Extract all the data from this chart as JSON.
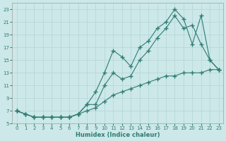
{
  "xlabel": "Humidex (Indice chaleur)",
  "bg_color": "#cce8e8",
  "line_color": "#2e7d72",
  "grid_color": "#b8d8d8",
  "xlim": [
    -0.5,
    23.5
  ],
  "ylim": [
    5,
    24
  ],
  "yticks": [
    5,
    7,
    9,
    11,
    13,
    15,
    17,
    19,
    21,
    23
  ],
  "xticks": [
    0,
    1,
    2,
    3,
    4,
    5,
    6,
    7,
    8,
    9,
    10,
    11,
    12,
    13,
    14,
    15,
    16,
    17,
    18,
    19,
    20,
    21,
    22,
    23
  ],
  "line1_x": [
    0,
    1,
    2,
    3,
    4,
    5,
    6,
    7,
    8,
    9,
    10,
    11,
    12,
    13,
    14,
    15,
    16,
    17,
    18,
    19,
    20,
    21,
    22,
    23
  ],
  "line1_y": [
    7,
    6.5,
    6,
    6,
    6,
    6,
    6,
    6.5,
    8,
    10,
    13,
    16.5,
    15.5,
    14,
    17,
    18,
    20,
    21,
    23,
    21.5,
    17.5,
    22,
    15,
    13.5
  ],
  "line2_x": [
    0,
    1,
    2,
    3,
    4,
    5,
    6,
    7,
    8,
    9,
    10,
    11,
    12,
    13,
    14,
    15,
    16,
    17,
    18,
    19,
    20,
    21,
    22,
    23
  ],
  "line2_y": [
    7,
    6.5,
    6,
    6,
    6,
    6,
    6,
    6.5,
    8,
    8,
    11,
    13,
    12,
    12.5,
    15,
    16.5,
    18.5,
    20,
    22,
    20,
    20.5,
    17.5,
    15,
    13.5
  ],
  "line3_x": [
    0,
    1,
    2,
    3,
    4,
    5,
    6,
    7,
    8,
    9,
    10,
    11,
    12,
    13,
    14,
    15,
    16,
    17,
    18,
    19,
    20,
    21,
    22,
    23
  ],
  "line3_y": [
    7,
    6.5,
    6,
    6,
    6,
    6,
    6,
    6.5,
    7,
    7.5,
    8.5,
    9.5,
    10,
    10.5,
    11,
    11.5,
    12,
    12.5,
    12.5,
    13,
    13,
    13,
    13.5,
    13.5
  ]
}
